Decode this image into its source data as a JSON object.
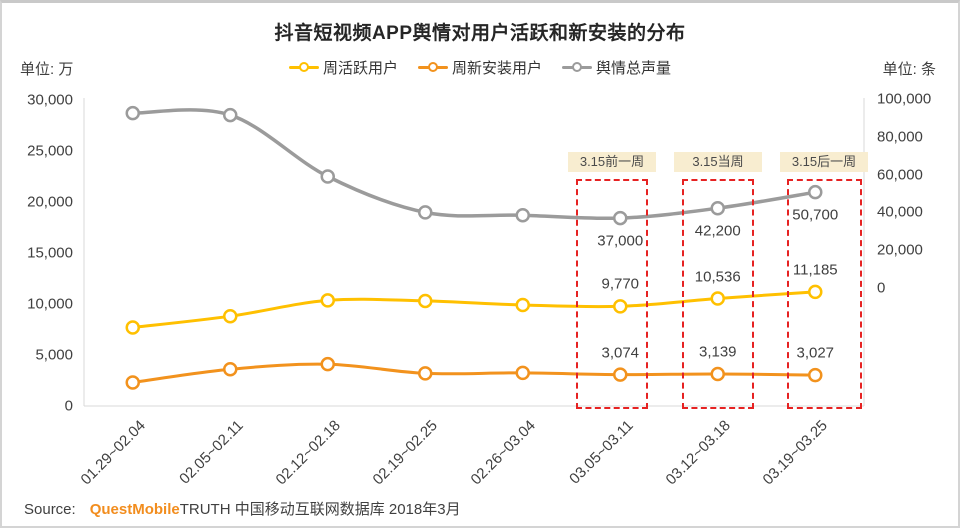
{
  "title": "抖音短视频APP舆情对用户活跃和新安装的分布",
  "unit_left": "单位: 万",
  "unit_right": "单位: 条",
  "source": {
    "prefix": "Source:",
    "brand": "QuestMobile",
    "suffix": "TRUTH 中国移动互联网数据库 2018年3月"
  },
  "annotations": [
    {
      "label": "3.15前一周",
      "category": "03.05~03.11"
    },
    {
      "label": "3.15当周",
      "category": "03.12~03.18"
    },
    {
      "label": "3.15后一周",
      "category": "03.19~03.25"
    }
  ],
  "colors": {
    "annotation_red": "#E62222",
    "annotation_bg": "#F8EDD0",
    "axis_line": "#D9D9D9",
    "brand_orange": "#F28D1E"
  },
  "chart_data": {
    "type": "line",
    "title": "抖音短视频APP舆情对用户活跃和新安装的分布",
    "legend_position": "top",
    "grid": false,
    "categories": [
      "01.29~02.04",
      "02.05~02.11",
      "02.12~02.18",
      "02.19~02.25",
      "02.26~03.04",
      "03.05~03.11",
      "03.12~03.18",
      "03.19~03.25"
    ],
    "left_axis": {
      "label": "单位: 万",
      "min": 0,
      "max": 30000,
      "ticks": [
        "0",
        "5,000",
        "10,000",
        "15,000",
        "20,000",
        "25,000",
        "30,000"
      ]
    },
    "right_axis": {
      "label": "单位: 条",
      "min": 0,
      "max": 100000,
      "ticks": [
        "0",
        "20,000",
        "40,000",
        "60,000",
        "80,000",
        "100,000"
      ]
    },
    "series": [
      {
        "id": "weekly-active-users",
        "name": "周活跃用户",
        "axis": "left",
        "color": "#FFC000",
        "values": [
          7700,
          8800,
          10350,
          10300,
          9900,
          9770,
          10536,
          11185
        ],
        "point_labels": [
          "",
          "",
          "",
          "",
          "",
          "9,770",
          "10,536",
          "11,185"
        ],
        "label_side": "above"
      },
      {
        "id": "weekly-new-install-users",
        "name": "周新安装用户",
        "axis": "left",
        "color": "#F2921D",
        "values": [
          2300,
          3600,
          4100,
          3200,
          3250,
          3074,
          3139,
          3027
        ],
        "point_labels": [
          "",
          "",
          "",
          "",
          "",
          "3,074",
          "3,139",
          "3,027"
        ],
        "label_side": "above"
      },
      {
        "id": "sentiment-total-volume",
        "name": "舆情总声量",
        "axis": "right",
        "color": "#9B9B9B",
        "values": [
          92500,
          91500,
          59000,
          40000,
          38500,
          37000,
          42200,
          50700
        ],
        "point_labels": [
          "",
          "",
          "",
          "",
          "",
          "37,000",
          "42,200",
          "50,700"
        ],
        "label_side": "below"
      }
    ]
  }
}
